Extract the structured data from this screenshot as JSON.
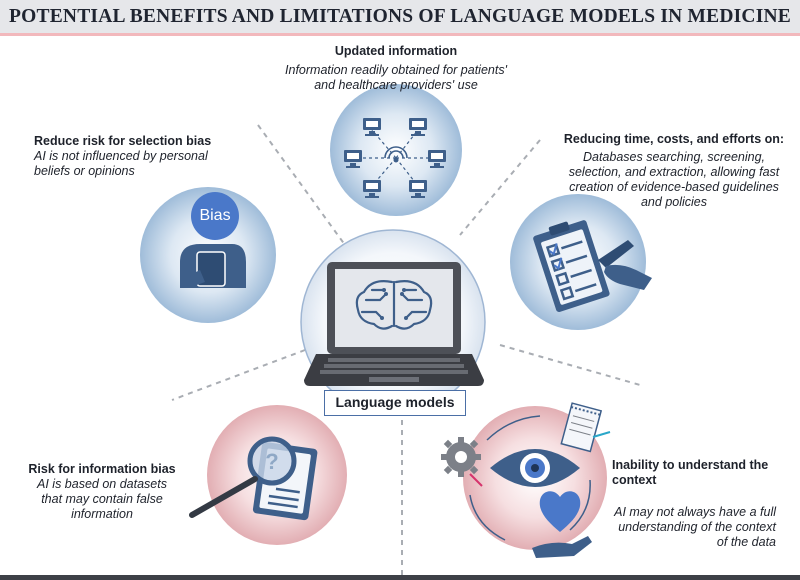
{
  "title": "POTENTIAL BENEFITS AND LIMITATIONS OF LANGUAGE MODELS IN MEDICINE",
  "center": {
    "label": "Language models"
  },
  "items": [
    {
      "heading": "Updated information",
      "body": "Information readily obtained for patients' and healthcare providers' use",
      "type": "benefit"
    },
    {
      "heading": "Reduce risk for selection bias",
      "body": "AI is not influenced by personal beliefs or opinions",
      "badge": "Bias",
      "type": "benefit"
    },
    {
      "heading": "Reducing time, costs, and efforts on:",
      "body": "Databases searching, screening, selection, and extraction, allowing fast creation of evidence-based guidelines and policies",
      "type": "benefit"
    },
    {
      "heading": "Risk for information bias",
      "body": "AI is based on datasets that may contain false information",
      "type": "limitation"
    },
    {
      "heading": "Inability to understand the context",
      "body": "AI may not always have a full understanding of the context of the data",
      "type": "limitation"
    }
  ],
  "colors": {
    "benefit": "#2f6aa6",
    "limitation": "#c98b8f",
    "icon": "#3e5f8a"
  }
}
